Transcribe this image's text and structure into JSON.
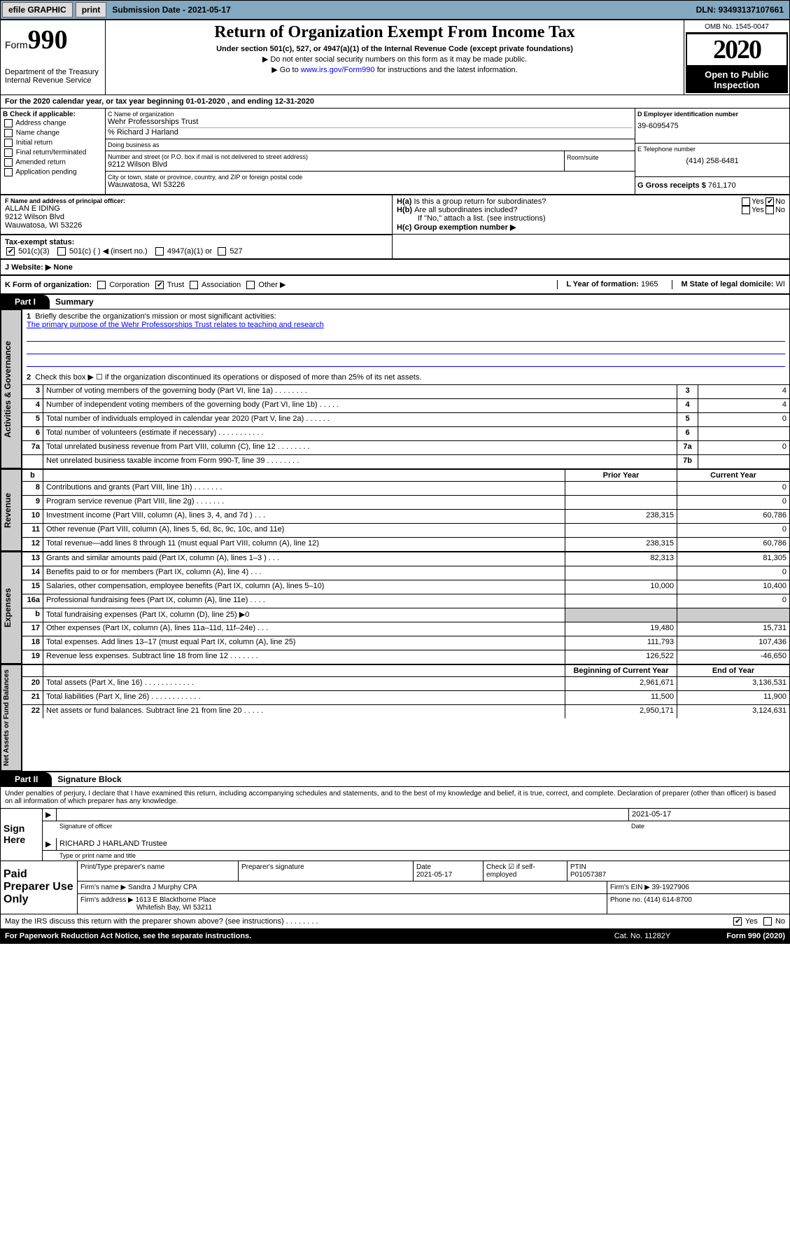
{
  "topbar": {
    "efile": "efile GRAPHIC",
    "print": "print",
    "sublabel": "Submission Date - 2021-05-17",
    "dln": "DLN: 93493137107661"
  },
  "header": {
    "form": "Form",
    "formno": "990",
    "dept": "Department of the Treasury\nInternal Revenue Service",
    "title": "Return of Organization Exempt From Income Tax",
    "sub": "Under section 501(c), 527, or 4947(a)(1) of the Internal Revenue Code (except private foundations)",
    "l1": "▶ Do not enter social security numbers on this form as it may be made public.",
    "l2a": "▶ Go to ",
    "l2b": "www.irs.gov/Form990",
    "l2c": " for instructions and the latest information.",
    "omb": "OMB No. 1545-0047",
    "year": "2020",
    "open": "Open to Public Inspection"
  },
  "period": {
    "text": "For the 2020 calendar year, or tax year beginning 01-01-2020    , and ending 12-31-2020"
  },
  "B": {
    "hdr": "B Check if applicable:",
    "items": [
      "Address change",
      "Name change",
      "Initial return",
      "Final return/terminated",
      "Amended return",
      "Application pending"
    ]
  },
  "C": {
    "lbl": "C Name of organization",
    "name": "Wehr Professorships Trust",
    "care": "% Richard J Harland",
    "dba_lbl": "Doing business as",
    "dba": ""
  },
  "D": {
    "lbl": "D Employer identification number",
    "ein": "39-6095475"
  },
  "addr": {
    "lbl": "Number and street (or P.O. box if mail is not delivered to street address)",
    "room": "Room/suite",
    "street": "9212 Wilson Blvd",
    "city_lbl": "City or town, state or province, country, and ZIP or foreign postal code",
    "city": "Wauwatosa, WI  53226"
  },
  "E": {
    "lbl": "E Telephone number",
    "phone": "(414) 258-6481"
  },
  "G": {
    "lbl": "G Gross receipts $",
    "amt": "761,170"
  },
  "F": {
    "lbl": "F  Name and address of principal officer:",
    "name": "ALLAN E IDING",
    "street": "9212 Wilson Blvd",
    "city": "Wauwatosa, WI  53226"
  },
  "H": {
    "a": "H(a)  Is this a group return for subordinates?",
    "b": "H(b)  Are all subordinates included?",
    "bnote": "If \"No,\" attach a list. (see instructions)",
    "c": "H(c)  Group exemption number ▶",
    "yes": "Yes",
    "no": "No"
  },
  "I": {
    "lbl": "Tax-exempt status:",
    "c501c3": "501(c)(3)",
    "c501c": "501(c) (  ) ◀ (insert no.)",
    "c4947": "4947(a)(1) or",
    "c527": "527"
  },
  "J": {
    "lbl": "J   Website: ▶",
    "val": " None"
  },
  "K": {
    "lbl": "K Form of organization:",
    "corp": "Corporation",
    "trust": "Trust",
    "assoc": "Association",
    "other": "Other ▶"
  },
  "L": {
    "lbl": "L Year of formation:",
    "val": "1965"
  },
  "M": {
    "lbl": "M State of legal domicile:",
    "val": "WI"
  },
  "part1": {
    "label": "Part I",
    "title": "Summary"
  },
  "summary": {
    "tabs": [
      "Activities & Governance",
      "Revenue",
      "Expenses",
      "Net Assets or Fund Balances"
    ],
    "q1": "Briefly describe the organization's mission or most significant activities:",
    "mission": "The primary purpose of the Wehr Professorships Trust relates to teaching and research",
    "q2": "Check this box ▶ ☐  if the organization discontinued its operations or disposed of more than 25% of its net assets.",
    "rows_a": [
      {
        "n": "3",
        "t": "Number of voting members of the governing body (Part VI, line 1a)  .    .    .    .    .    .    .    .",
        "k": "3",
        "v": "4"
      },
      {
        "n": "4",
        "t": "Number of independent voting members of the governing body (Part VI, line 1b)   .    .    .    .    .",
        "k": "4",
        "v": "4"
      },
      {
        "n": "5",
        "t": "Total number of individuals employed in calendar year 2020 (Part V, line 2a)  .    .    .    .    .    .",
        "k": "5",
        "v": "0"
      },
      {
        "n": "6",
        "t": "Total number of volunteers (estimate if necessary)  .    .    .    .    .    .    .    .    .    .    .",
        "k": "6",
        "v": ""
      },
      {
        "n": "7a",
        "t": "Total unrelated business revenue from Part VIII, column (C), line 12  .    .    .    .    .    .    .    .",
        "k": "7a",
        "v": "0"
      },
      {
        "n": "",
        "t": "Net unrelated business taxable income from Form 990-T, line 39   .    .    .    .    .    .    .    .",
        "k": "7b",
        "v": ""
      }
    ],
    "colhdr": {
      "b": "b",
      "py": "Prior Year",
      "cy": "Current Year"
    },
    "rows_rev": [
      {
        "n": "8",
        "t": "Contributions and grants (Part VIII, line 1h)   .    .    .    .    .    .    .",
        "pv": "",
        "cv": "0"
      },
      {
        "n": "9",
        "t": "Program service revenue (Part VIII, line 2g)   .    .    .    .    .    .    .",
        "pv": "",
        "cv": "0"
      },
      {
        "n": "10",
        "t": "Investment income (Part VIII, column (A), lines 3, 4, and 7d )   .    .    .",
        "pv": "238,315",
        "cv": "60,786"
      },
      {
        "n": "11",
        "t": "Other revenue (Part VIII, column (A), lines 5, 6d, 8c, 9c, 10c, and 11e)",
        "pv": "",
        "cv": "0"
      },
      {
        "n": "12",
        "t": "Total revenue—add lines 8 through 11 (must equal Part VIII, column (A), line 12)",
        "pv": "238,315",
        "cv": "60,786"
      }
    ],
    "rows_exp": [
      {
        "n": "13",
        "t": "Grants and similar amounts paid (Part IX, column (A), lines 1–3 )   .    .    .",
        "pv": "82,313",
        "cv": "81,305"
      },
      {
        "n": "14",
        "t": "Benefits paid to or for members (Part IX, column (A), line 4)   .    .    .",
        "pv": "",
        "cv": "0"
      },
      {
        "n": "15",
        "t": "Salaries, other compensation, employee benefits (Part IX, column (A), lines 5–10)",
        "pv": "10,000",
        "cv": "10,400"
      },
      {
        "n": "16a",
        "t": "Professional fundraising fees (Part IX, column (A), line 11e)   .    .    .    .",
        "pv": "",
        "cv": "0"
      },
      {
        "n": "b",
        "t": "Total fundraising expenses (Part IX, column (D), line 25) ▶0",
        "pv": "—",
        "cv": "—"
      },
      {
        "n": "17",
        "t": "Other expenses (Part IX, column (A), lines 11a–11d, 11f–24e)   .    .    .",
        "pv": "19,480",
        "cv": "15,731"
      },
      {
        "n": "18",
        "t": "Total expenses. Add lines 13–17 (must equal Part IX, column (A), line 25)",
        "pv": "111,793",
        "cv": "107,436"
      },
      {
        "n": "19",
        "t": "Revenue less expenses. Subtract line 18 from line 12   .    .    .    .    .    .    .",
        "pv": "126,522",
        "cv": "-46,650"
      }
    ],
    "colhdr2": {
      "py": "Beginning of Current Year",
      "cy": "End of Year"
    },
    "rows_na": [
      {
        "n": "20",
        "t": "Total assets (Part X, line 16)   .    .    .    .    .    .    .    .    .    .    .    .",
        "pv": "2,961,671",
        "cv": "3,136,531"
      },
      {
        "n": "21",
        "t": "Total liabilities (Part X, line 26)   .    .    .    .    .    .    .    .    .    .    .    .",
        "pv": "11,500",
        "cv": "11,900"
      },
      {
        "n": "22",
        "t": "Net assets or fund balances. Subtract line 21 from line 20   .    .    .    .    .",
        "pv": "2,950,171",
        "cv": "3,124,631"
      }
    ]
  },
  "part2": {
    "label": "Part II",
    "title": "Signature Block"
  },
  "decl": "Under penalties of perjury, I declare that I have examined this return, including accompanying schedules and statements, and to the best of my knowledge and belief, it is true, correct, and complete. Declaration of preparer (other than officer) is based on all information of which preparer has any knowledge.",
  "sign": {
    "here": "Sign Here",
    "sigoff": "Signature of officer",
    "date": "2021-05-17",
    "datelbl": "Date",
    "name": "RICHARD J HARLAND  Trustee",
    "namelbl": "Type or print name and title"
  },
  "paid": {
    "lbl": "Paid Preparer Use Only",
    "h": [
      "Print/Type preparer's name",
      "Preparer's signature",
      "Date",
      "",
      "PTIN"
    ],
    "r1": [
      "",
      "",
      "2021-05-17",
      "Check ☑ if self-employed",
      "P01057387"
    ],
    "fn_lbl": "Firm's name    ▶",
    "fn": "Sandra J Murphy CPA",
    "fein_lbl": "Firm's EIN ▶",
    "fein": "39-1927906",
    "fa_lbl": "Firm's address ▶",
    "fa1": "1613 E Blackthorne Place",
    "fa2": "Whitefish Bay, WI  53211",
    "ph_lbl": "Phone no.",
    "ph": "(414) 614-8700"
  },
  "discuss": {
    "q": "May the IRS discuss this return with the preparer shown above? (see instructions)   .    .    .    .    .    .    .    .",
    "yes": "Yes",
    "no": "No"
  },
  "foot": {
    "l": "For Paperwork Reduction Act Notice, see the separate instructions.",
    "m": "Cat. No. 11282Y",
    "r": "Form 990 (2020)"
  }
}
